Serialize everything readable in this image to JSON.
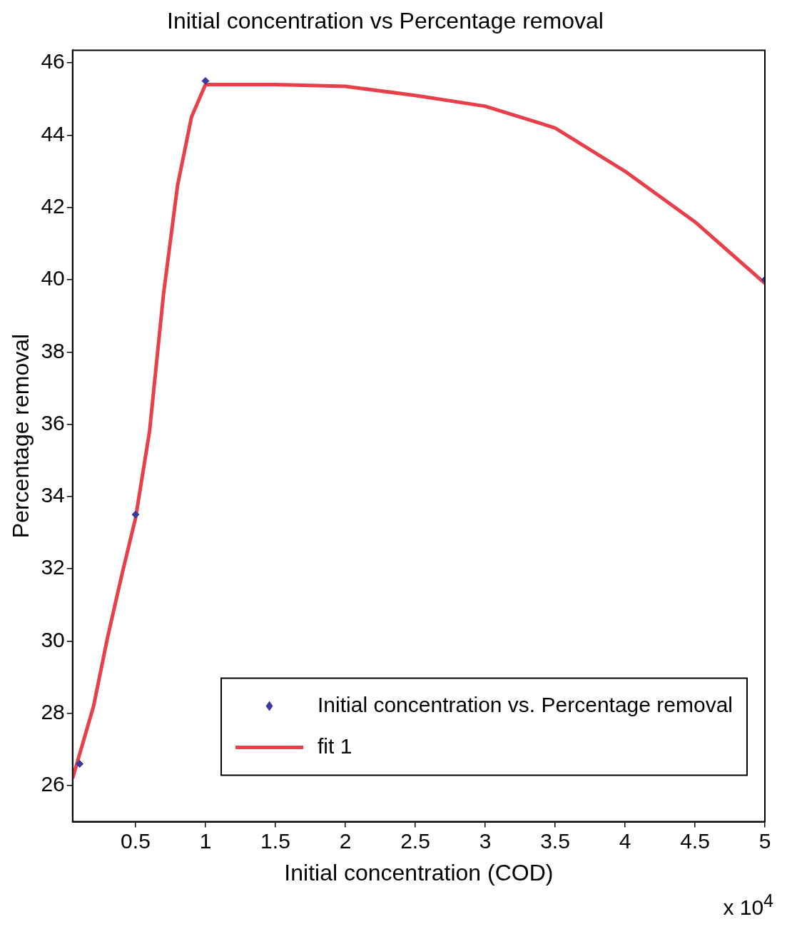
{
  "chart_data": {
    "type": "scatter",
    "title": "Initial concentration vs Percentage removal",
    "xlabel": "Initial concentration (COD)",
    "ylabel": "Percentage removal",
    "annotations": [
      "x 10$^{4}$"
    ],
    "xlim": [
      0.05,
      5
    ],
    "xticks": [
      0.5,
      1,
      1.5,
      2,
      2.5,
      3,
      3.5,
      4,
      4.5,
      5
    ],
    "ylim": [
      25,
      46.35
    ],
    "yticks": [
      26,
      28,
      30,
      32,
      34,
      36,
      38,
      40,
      42,
      44,
      46
    ],
    "grid": false,
    "legend": "bottom right",
    "series": [
      {
        "name": "Initial concentration vs. Percentage removal",
        "marker": "diamond",
        "color": "#3b3b9e",
        "x": [
          0.1,
          0.5,
          1,
          5
        ],
        "values": [
          26.6,
          33.5,
          45.5,
          40
        ]
      },
      {
        "name": "fit 1",
        "type": "line",
        "marker": "none",
        "line_style": "solid",
        "color": "#e8404a",
        "x": [
          0.05,
          0.2,
          0.3,
          0.4,
          0.5,
          0.6,
          0.7,
          0.8,
          0.9,
          1,
          1.5,
          2,
          2.5,
          3,
          3.5,
          4,
          4.5,
          5
        ],
        "values": [
          26.2,
          28.2,
          30.1,
          31.8,
          33.4,
          35.8,
          39.6,
          42.6,
          44.5,
          45.4,
          45.4,
          45.35,
          45.1,
          44.8,
          44.2,
          43.0,
          41.6,
          39.9
        ]
      }
    ]
  }
}
